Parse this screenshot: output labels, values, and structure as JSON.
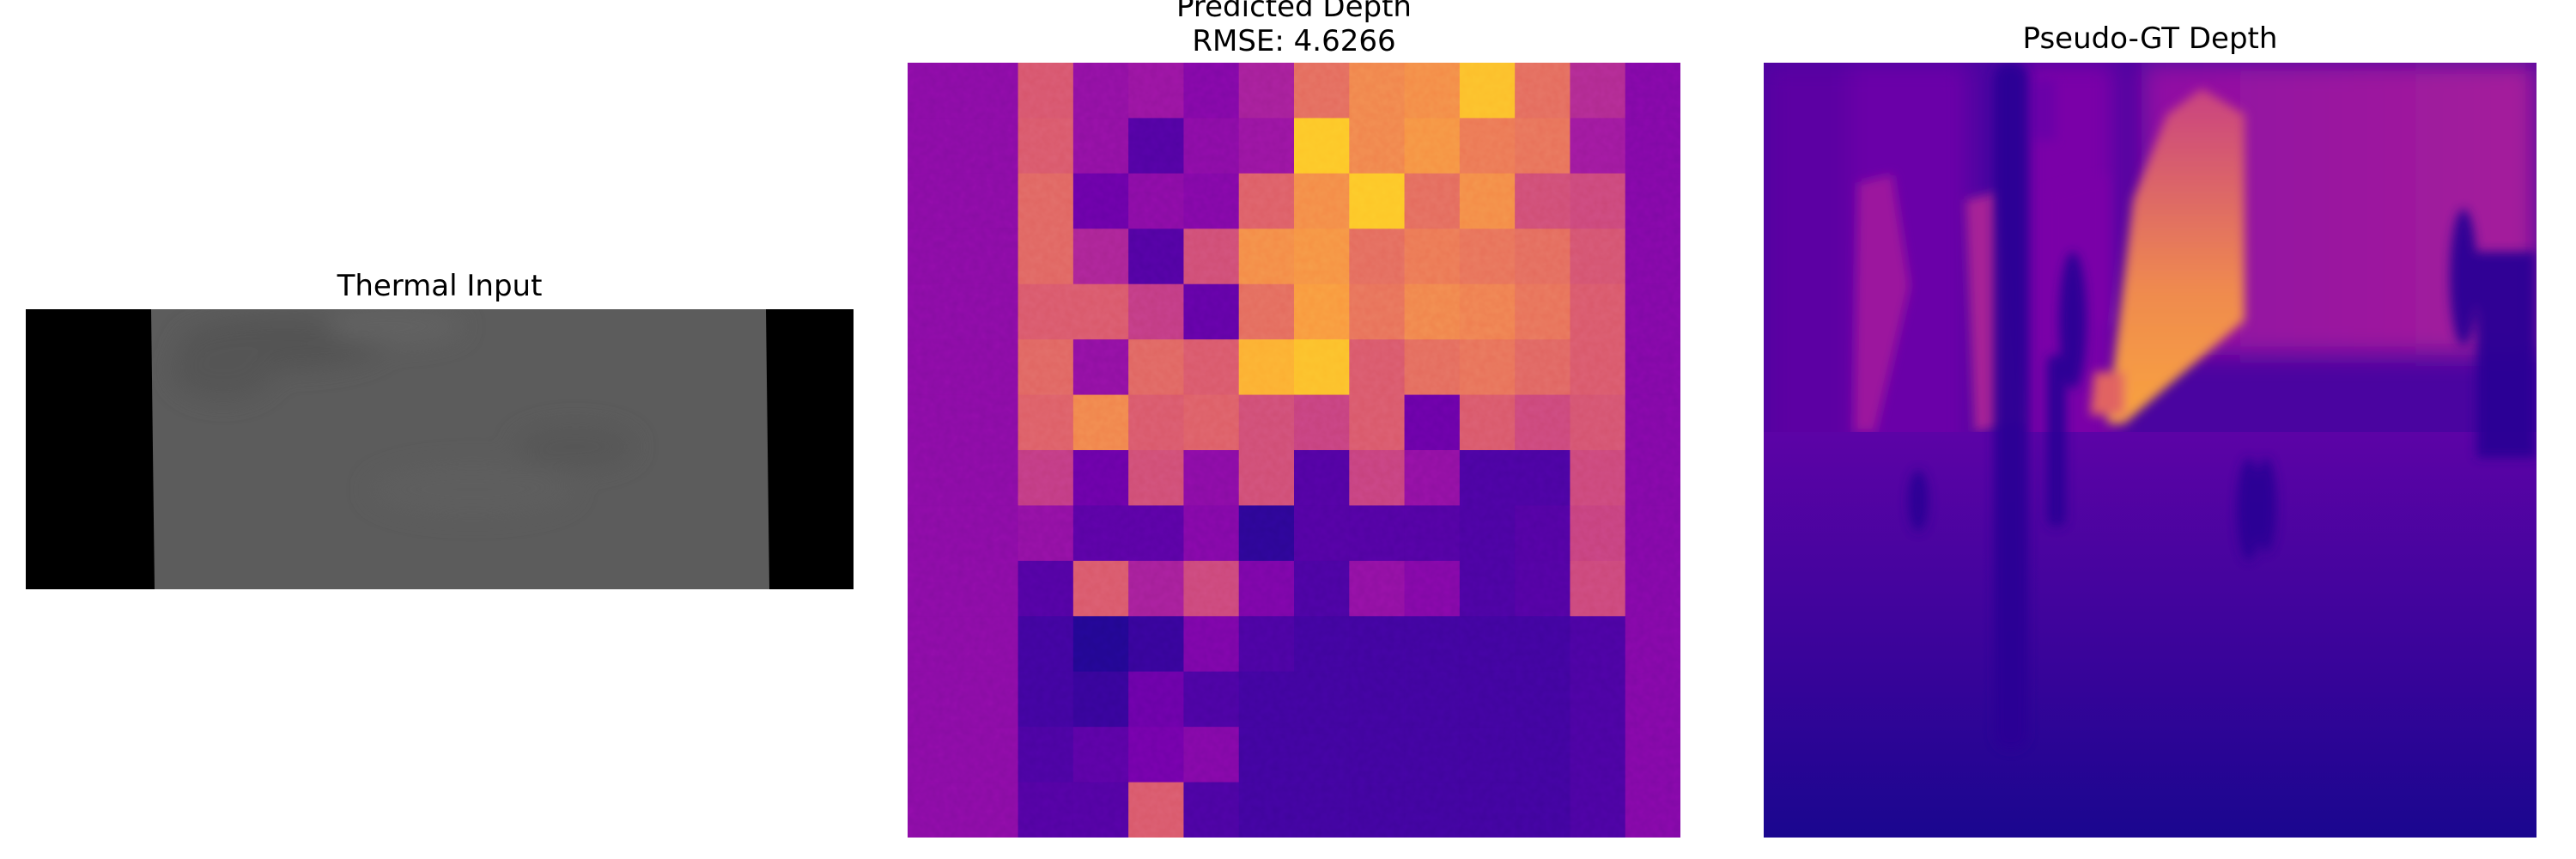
{
  "panels": {
    "thermal": {
      "title": "Thermal Input"
    },
    "predicted": {
      "title_line1": "Predicted Depth",
      "title_line2": "RMSE: 4.6266"
    },
    "pseudo_gt": {
      "title": "Pseudo-GT Depth"
    }
  },
  "colormap": {
    "name": "plasma",
    "stops": [
      "#0d0887",
      "#46039f",
      "#7201a8",
      "#9c179e",
      "#bd3786",
      "#d8576b",
      "#ed7953",
      "#fb9f3a",
      "#fdca26",
      "#f0f921"
    ]
  },
  "predicted_grid": {
    "rows": 14,
    "cols": 14,
    "values": [
      [
        0.28,
        0.28,
        0.55,
        0.3,
        0.32,
        0.26,
        0.36,
        0.62,
        0.7,
        0.72,
        0.86,
        0.62,
        0.4,
        0.26
      ],
      [
        0.28,
        0.28,
        0.56,
        0.3,
        0.14,
        0.28,
        0.32,
        0.88,
        0.7,
        0.74,
        0.66,
        0.64,
        0.34,
        0.26
      ],
      [
        0.28,
        0.28,
        0.6,
        0.2,
        0.28,
        0.26,
        0.58,
        0.72,
        0.88,
        0.62,
        0.72,
        0.52,
        0.5,
        0.26
      ],
      [
        0.28,
        0.28,
        0.6,
        0.38,
        0.14,
        0.52,
        0.72,
        0.74,
        0.62,
        0.66,
        0.64,
        0.62,
        0.54,
        0.26
      ],
      [
        0.28,
        0.28,
        0.56,
        0.56,
        0.46,
        0.18,
        0.62,
        0.76,
        0.64,
        0.7,
        0.68,
        0.64,
        0.56,
        0.26
      ],
      [
        0.28,
        0.28,
        0.6,
        0.3,
        0.6,
        0.56,
        0.82,
        0.86,
        0.56,
        0.62,
        0.64,
        0.6,
        0.56,
        0.26
      ],
      [
        0.28,
        0.28,
        0.58,
        0.7,
        0.56,
        0.58,
        0.52,
        0.48,
        0.56,
        0.2,
        0.56,
        0.5,
        0.54,
        0.26
      ],
      [
        0.28,
        0.28,
        0.46,
        0.2,
        0.52,
        0.28,
        0.52,
        0.14,
        0.48,
        0.3,
        0.12,
        0.12,
        0.5,
        0.26
      ],
      [
        0.28,
        0.28,
        0.3,
        0.16,
        0.16,
        0.26,
        0.06,
        0.14,
        0.14,
        0.14,
        0.12,
        0.14,
        0.48,
        0.26
      ],
      [
        0.28,
        0.28,
        0.14,
        0.56,
        0.36,
        0.5,
        0.24,
        0.12,
        0.3,
        0.26,
        0.12,
        0.14,
        0.5,
        0.26
      ],
      [
        0.28,
        0.28,
        0.1,
        0.04,
        0.08,
        0.24,
        0.12,
        0.1,
        0.1,
        0.1,
        0.1,
        0.1,
        0.12,
        0.26
      ],
      [
        0.28,
        0.28,
        0.1,
        0.08,
        0.2,
        0.12,
        0.1,
        0.1,
        0.1,
        0.1,
        0.1,
        0.1,
        0.12,
        0.26
      ],
      [
        0.28,
        0.28,
        0.12,
        0.16,
        0.22,
        0.26,
        0.1,
        0.1,
        0.1,
        0.1,
        0.1,
        0.1,
        0.12,
        0.26
      ],
      [
        0.28,
        0.28,
        0.14,
        0.14,
        0.56,
        0.12,
        0.1,
        0.1,
        0.1,
        0.1,
        0.1,
        0.1,
        0.12,
        0.26
      ]
    ]
  }
}
